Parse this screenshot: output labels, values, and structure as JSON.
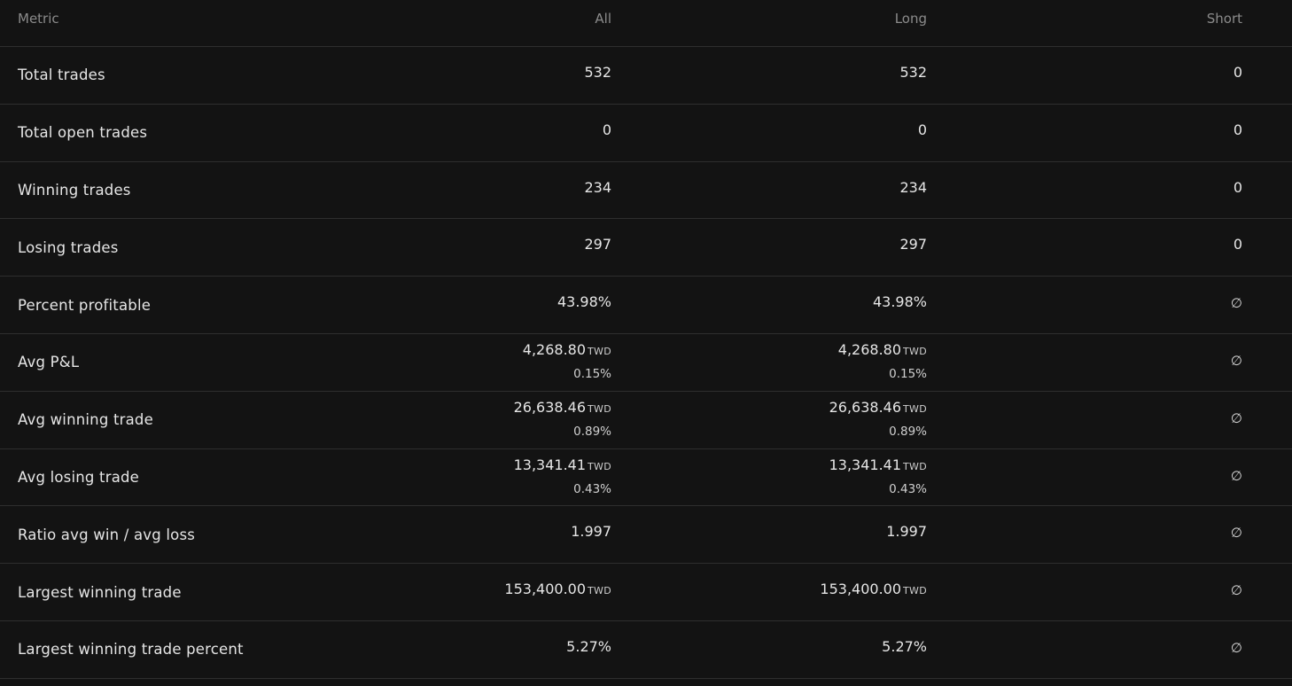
{
  "headers": {
    "metric": "Metric",
    "all": "All",
    "long": "Long",
    "short": "Short"
  },
  "rows": [
    {
      "metric": "Total trades",
      "all": {
        "value": "532"
      },
      "long": {
        "value": "532"
      },
      "short": {
        "value": "0"
      }
    },
    {
      "metric": "Total open trades",
      "all": {
        "value": "0"
      },
      "long": {
        "value": "0"
      },
      "short": {
        "value": "0"
      }
    },
    {
      "metric": "Winning trades",
      "all": {
        "value": "234"
      },
      "long": {
        "value": "234"
      },
      "short": {
        "value": "0"
      }
    },
    {
      "metric": "Losing trades",
      "all": {
        "value": "297"
      },
      "long": {
        "value": "297"
      },
      "short": {
        "value": "0"
      }
    },
    {
      "metric": "Percent profitable",
      "all": {
        "value": "43.98%"
      },
      "long": {
        "value": "43.98%"
      },
      "short": {
        "value": "∅"
      }
    },
    {
      "metric": "Avg P&L",
      "all": {
        "value": "4,268.80",
        "currency": "TWD",
        "sub": "0.15%"
      },
      "long": {
        "value": "4,268.80",
        "currency": "TWD",
        "sub": "0.15%"
      },
      "short": {
        "value": "∅"
      }
    },
    {
      "metric": "Avg winning trade",
      "all": {
        "value": "26,638.46",
        "currency": "TWD",
        "sub": "0.89%"
      },
      "long": {
        "value": "26,638.46",
        "currency": "TWD",
        "sub": "0.89%"
      },
      "short": {
        "value": "∅"
      }
    },
    {
      "metric": "Avg losing trade",
      "all": {
        "value": "13,341.41",
        "currency": "TWD",
        "sub": "0.43%"
      },
      "long": {
        "value": "13,341.41",
        "currency": "TWD",
        "sub": "0.43%"
      },
      "short": {
        "value": "∅"
      }
    },
    {
      "metric": "Ratio avg win / avg loss",
      "all": {
        "value": "1.997"
      },
      "long": {
        "value": "1.997"
      },
      "short": {
        "value": "∅"
      }
    },
    {
      "metric": "Largest winning trade",
      "all": {
        "value": "153,400.00",
        "currency": "TWD"
      },
      "long": {
        "value": "153,400.00",
        "currency": "TWD"
      },
      "short": {
        "value": "∅"
      }
    },
    {
      "metric": "Largest winning trade percent",
      "all": {
        "value": "5.27%"
      },
      "long": {
        "value": "5.27%"
      },
      "short": {
        "value": "∅"
      }
    }
  ]
}
